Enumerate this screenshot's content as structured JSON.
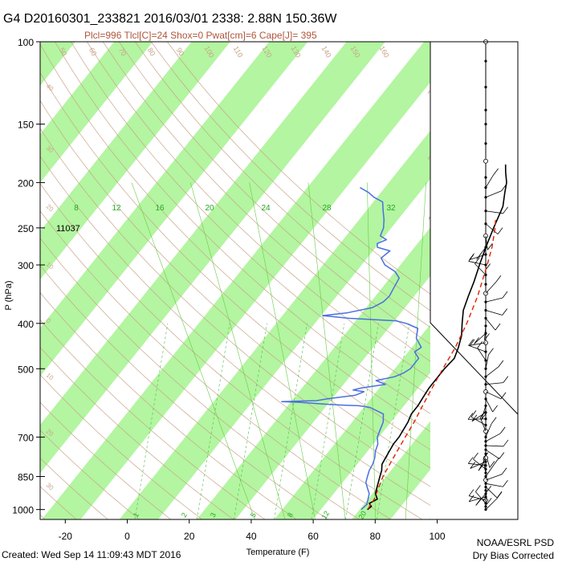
{
  "header": {
    "title": "G4 D20160301_233821 2016/03/01 2338:  2.88N 150.36W",
    "subtitle": "Plcl=996 Tlcl[C]=24 Shox=0 Pwat[cm]=6 Cape[J]= 395"
  },
  "footer": {
    "created": "Created: Wed Sep 14 11:09:43 MDT 2016",
    "org": "NOAA/ESRL PSD",
    "note": "Dry Bias Corrected"
  },
  "colors": {
    "band": "#b3f5a0",
    "temperature": "#000000",
    "dewpoint": "#4a6fe0",
    "parcel": "#dd2200",
    "dry_adiabat": "#c8a58a",
    "moist_adiabat": "#66cc44",
    "mixing_ratio": "#44bb44",
    "isotherm_label": "#c8a58a"
  },
  "chart_data": {
    "type": "line",
    "title": "G4 D20160301_233821 2016/03/01 2338:  2.88N 150.36W",
    "subtitle": "Plcl=996 Tlcl[C]=24 Shox=0 Pwat[cm]=6 Cape[J]= 395",
    "xlabel": "Temperature (F)",
    "ylabel": "P (hPa)",
    "xlim": [
      -30,
      110
    ],
    "ylim": [
      1050,
      100
    ],
    "y_scale": "log",
    "x_ticks": [
      -20,
      0,
      20,
      40,
      60,
      80,
      100
    ],
    "y_ticks": [
      100,
      150,
      200,
      250,
      300,
      400,
      500,
      700,
      850,
      1000
    ],
    "annotation_height": "11037",
    "annotation_pressure": 250,
    "theta_e_labels": [
      "8",
      "12",
      "16",
      "20",
      "24",
      "28",
      "32"
    ],
    "dry_adiabat_labels": [
      "50",
      "60",
      "70",
      "80",
      "90",
      "100",
      "110",
      "120",
      "130",
      "140",
      "150",
      "160"
    ],
    "skew_isotherm_labels": [
      "30",
      "20",
      "10",
      "0",
      "10",
      "20"
    ],
    "left_isotherm_labels": [
      "40",
      "30",
      "20",
      "10",
      "0",
      "10",
      "20",
      "30"
    ],
    "mixing_ratio_labels": [
      "1",
      "2",
      "3",
      "5",
      "8",
      "12",
      "20"
    ],
    "series": [
      {
        "name": "Temperature",
        "points": [
          [
            1000,
            77.5
          ],
          [
            985,
            78
          ],
          [
            970,
            76.5
          ],
          [
            950,
            78
          ],
          [
            925,
            76
          ],
          [
            900,
            75
          ],
          [
            875,
            74
          ],
          [
            850,
            73
          ],
          [
            825,
            72
          ],
          [
            800,
            70.5
          ],
          [
            775,
            70
          ],
          [
            750,
            69.5
          ],
          [
            725,
            69
          ],
          [
            700,
            69
          ],
          [
            675,
            68.5
          ],
          [
            650,
            68
          ],
          [
            625,
            67
          ],
          [
            600,
            67
          ],
          [
            575,
            66.5
          ],
          [
            550,
            66
          ],
          [
            525,
            66
          ],
          [
            500,
            66
          ],
          [
            475,
            66.5
          ],
          [
            450,
            65
          ],
          [
            425,
            63
          ],
          [
            400,
            60
          ],
          [
            375,
            57
          ],
          [
            350,
            55
          ],
          [
            325,
            53
          ],
          [
            300,
            50.5
          ],
          [
            275,
            48
          ],
          [
            250,
            45.5
          ],
          [
            225,
            43
          ],
          [
            210,
            40
          ],
          [
            200,
            38
          ],
          [
            190,
            35
          ],
          [
            183,
            33
          ]
        ]
      },
      {
        "name": "Dew point",
        "points": [
          [
            1000,
            75.5
          ],
          [
            975,
            76
          ],
          [
            950,
            75
          ],
          [
            925,
            74
          ],
          [
            900,
            72
          ],
          [
            875,
            70
          ],
          [
            850,
            69
          ],
          [
            825,
            68
          ],
          [
            800,
            67.5
          ],
          [
            775,
            66.5
          ],
          [
            750,
            65
          ],
          [
            725,
            64
          ],
          [
            700,
            62
          ],
          [
            675,
            61
          ],
          [
            650,
            60
          ],
          [
            625,
            58
          ],
          [
            615,
            55
          ],
          [
            605,
            52
          ],
          [
            600,
            48
          ],
          [
            598,
            42
          ],
          [
            595,
            36
          ],
          [
            590,
            28
          ],
          [
            588,
            22
          ],
          [
            585,
            33
          ],
          [
            580,
            36
          ],
          [
            570,
            44
          ],
          [
            560,
            46
          ],
          [
            555,
            42
          ],
          [
            550,
            44
          ],
          [
            540,
            51
          ],
          [
            530,
            47
          ],
          [
            520,
            52
          ],
          [
            510,
            54
          ],
          [
            500,
            55
          ],
          [
            475,
            55
          ],
          [
            460,
            52
          ],
          [
            450,
            53
          ],
          [
            440,
            51
          ],
          [
            430,
            49
          ],
          [
            420,
            48
          ],
          [
            410,
            47
          ],
          [
            400,
            42
          ],
          [
            395,
            38
          ],
          [
            390,
            22
          ],
          [
            385,
            13
          ],
          [
            380,
            20
          ],
          [
            370,
            27
          ],
          [
            360,
            29
          ],
          [
            350,
            29.5
          ],
          [
            340,
            29
          ],
          [
            320,
            28
          ],
          [
            310,
            25
          ],
          [
            300,
            20
          ],
          [
            290,
            17
          ],
          [
            280,
            18
          ],
          [
            275,
            13
          ],
          [
            270,
            12
          ],
          [
            265,
            14
          ],
          [
            260,
            11
          ],
          [
            250,
            10
          ],
          [
            240,
            8
          ],
          [
            230,
            5.5
          ],
          [
            220,
            3
          ],
          [
            215,
            -1
          ],
          [
            210,
            -4
          ],
          [
            205,
            -8
          ]
        ]
      },
      {
        "name": "Parcel",
        "points": [
          [
            996,
            77.5
          ],
          [
            950,
            77
          ],
          [
            900,
            75.5
          ],
          [
            850,
            74
          ],
          [
            800,
            73
          ],
          [
            750,
            72
          ],
          [
            700,
            71
          ],
          [
            650,
            70
          ],
          [
            600,
            68.5
          ],
          [
            550,
            67
          ],
          [
            500,
            65.5
          ],
          [
            450,
            64
          ],
          [
            400,
            61.5
          ],
          [
            350,
            58
          ],
          [
            300,
            53
          ],
          [
            275,
            50
          ],
          [
            250,
            46
          ],
          [
            240,
            44
          ]
        ]
      }
    ]
  },
  "wind_profile": {
    "type": "barbs",
    "levels": [
      100,
      110,
      125,
      140,
      150,
      165,
      180,
      195,
      205,
      215,
      230,
      245,
      260,
      275,
      285,
      300,
      315,
      330,
      345,
      360,
      375,
      390,
      405,
      420,
      440,
      460,
      480,
      500,
      520,
      540,
      560,
      580,
      600,
      620,
      640,
      660,
      680,
      700,
      715,
      730,
      745,
      760,
      775,
      790,
      805,
      820,
      835,
      850,
      865,
      880,
      895,
      910,
      925,
      940,
      955,
      970,
      985,
      1000
    ]
  }
}
